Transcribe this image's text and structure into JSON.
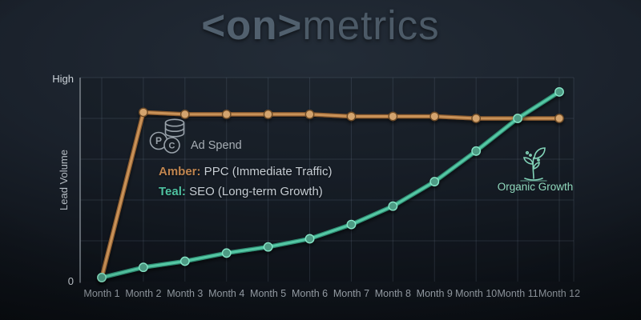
{
  "title": {
    "logo_bold": "<on>",
    "logo_rest": "metrics"
  },
  "legend": {
    "amber_label": "Amber:",
    "amber_text": " PPC (Immediate Traffic)",
    "teal_label": "Teal:",
    "teal_text": " SEO (Long-term Growth)"
  },
  "annotations": {
    "ad_spend": "Ad Spend",
    "organic_growth": "Organic Growth"
  },
  "colors": {
    "amber": "#c0854f",
    "amber_bright": "#d2a067",
    "amber_dark": "#7a5530",
    "teal": "#4fc2a1",
    "teal_bright": "#5fd0ae",
    "teal_dark": "#2e8c72",
    "background": "#1a212b",
    "title": "#4e5c69",
    "grid": "rgba(150,170,190,0.16)",
    "axis": "#9aa1a8",
    "tick_text": "#99a1a9",
    "organic_text": "#90d9bd",
    "adspend_gray": "#98a1a9"
  },
  "chart_data": {
    "type": "line",
    "categories": [
      "Month 1",
      "Month 2",
      "Month 3",
      "Month 4",
      "Month 5",
      "Month 6",
      "Month 7",
      "Month 8",
      "Month 9",
      "Month 10",
      "Month 11",
      "Month 12"
    ],
    "series": [
      {
        "name": "PPC (Immediate Traffic)",
        "color_name": "Amber",
        "stroke": "#c99258",
        "stroke_under": "#8a5a2e",
        "marker_fill": "#d4a46e",
        "marker_stroke": "#6e4c28",
        "values": [
          2,
          83,
          82,
          82,
          82,
          82,
          81,
          81,
          81,
          80,
          80,
          80
        ]
      },
      {
        "name": "SEO (Long-term Growth)",
        "color_name": "Teal",
        "stroke": "#55c7a4",
        "stroke_under": "#2e8c72",
        "marker_fill": "#4e9b84",
        "marker_stroke": "#86e4c6",
        "values": [
          2,
          7,
          10,
          14,
          17,
          21,
          28,
          37,
          49,
          64,
          80,
          93
        ]
      }
    ],
    "title": "<on>metrics",
    "xlabel": "",
    "ylabel": "Lead Volume",
    "y_tick_labels": [
      "0",
      "High"
    ],
    "ylim": [
      0,
      100
    ],
    "grid": true,
    "legend_position": "inside-left"
  }
}
